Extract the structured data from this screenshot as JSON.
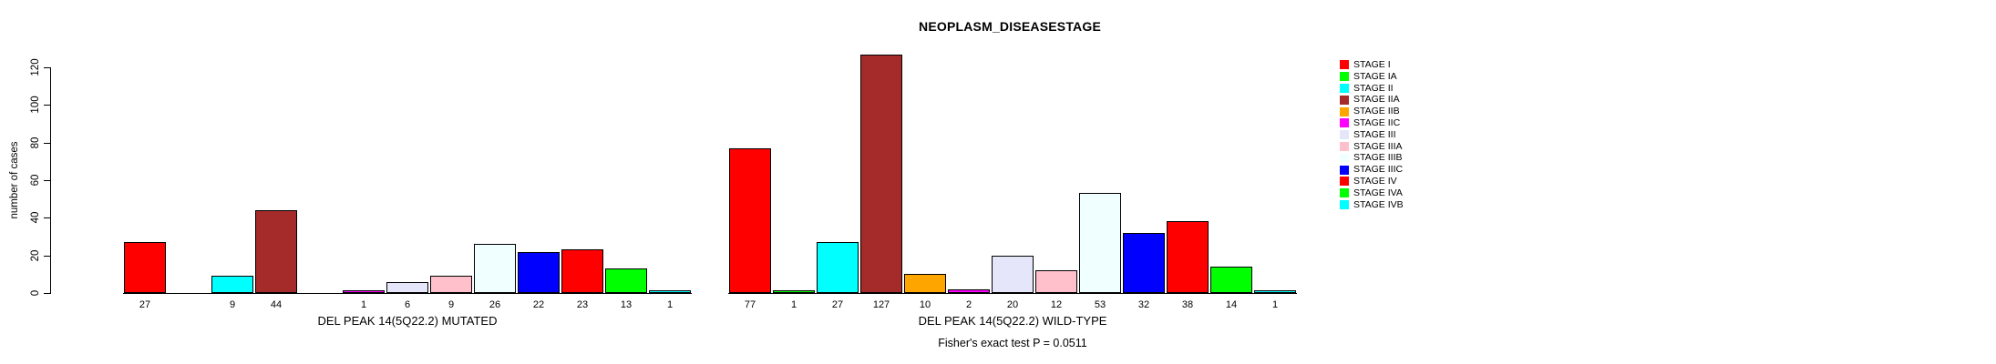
{
  "page": {
    "title": "NEOPLASM_DISEASESTAGE",
    "footer_note": "Fisher's exact test P = 0.0511"
  },
  "chart_data": {
    "type": "bar",
    "title": "NEOPLASM_DISEASESTAGE",
    "xlabel": "",
    "ylabel": "number of cases",
    "ylim": [
      0,
      120
    ],
    "yticks": [
      0,
      20,
      40,
      60,
      80,
      100,
      120
    ],
    "grid": false,
    "legend_position": "right",
    "categories": [
      "STAGE I",
      "STAGE IA",
      "STAGE II",
      "STAGE IIA",
      "STAGE IIB",
      "STAGE IIC",
      "STAGE III",
      "STAGE IIIA",
      "STAGE IIIB",
      "STAGE IIIC",
      "STAGE IV",
      "STAGE IVA",
      "STAGE IVB"
    ],
    "colors": [
      "#FF0000",
      "#00FF00",
      "#00FFFF",
      "#A52A2A",
      "#FFA500",
      "#FF00FF",
      "#E6E6FA",
      "#FFC0CB",
      "#F0FFFF",
      "#0000FF",
      "#FF0000",
      "#00FF00",
      "#00FFFF"
    ],
    "groups": [
      {
        "label": "DEL PEAK 14(5Q22.2) MUTATED",
        "values": [
          27,
          0,
          9,
          44,
          0,
          1,
          6,
          9,
          26,
          22,
          23,
          13,
          1
        ]
      },
      {
        "label": "DEL PEAK 14(5Q22.2) WILD-TYPE",
        "values": [
          77,
          1,
          27,
          127,
          10,
          2,
          20,
          12,
          53,
          32,
          38,
          14,
          1
        ]
      }
    ],
    "annotation": "Fisher's exact test P = 0.0511"
  }
}
